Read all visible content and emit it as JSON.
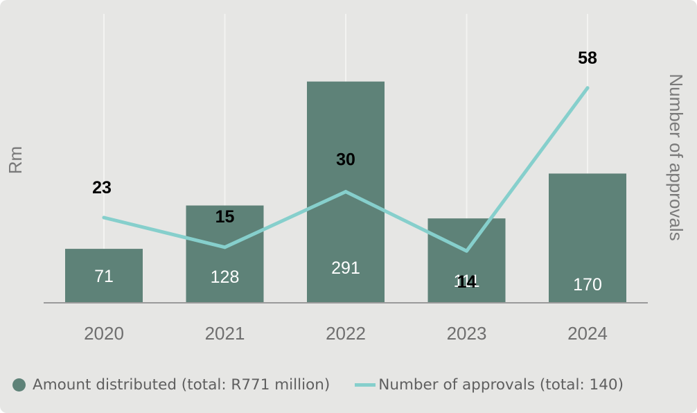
{
  "chart_data": {
    "type": "bar",
    "categories": [
      "2020",
      "2021",
      "2022",
      "2023",
      "2024"
    ],
    "series": [
      {
        "name": "Amount distributed (total: R771 million)",
        "type": "bar",
        "axis": "left",
        "values": [
          71,
          128,
          291,
          111,
          170
        ]
      },
      {
        "name": "Number of approvals (total: 140)",
        "type": "line",
        "axis": "right",
        "values": [
          23,
          15,
          30,
          14,
          58
        ]
      }
    ],
    "ylabel": "Rm",
    "y2label": "Number of approvals",
    "ylim": [
      0,
      380
    ],
    "y2lim": [
      0,
      78
    ],
    "grid": "vertical",
    "legend_position": "bottom-left",
    "colors": {
      "bar": "#5e8278",
      "line": "#86cfcc",
      "background": "#e6e6e4",
      "axis": "#9a9a9a",
      "grid": "#f3f3f1"
    }
  }
}
